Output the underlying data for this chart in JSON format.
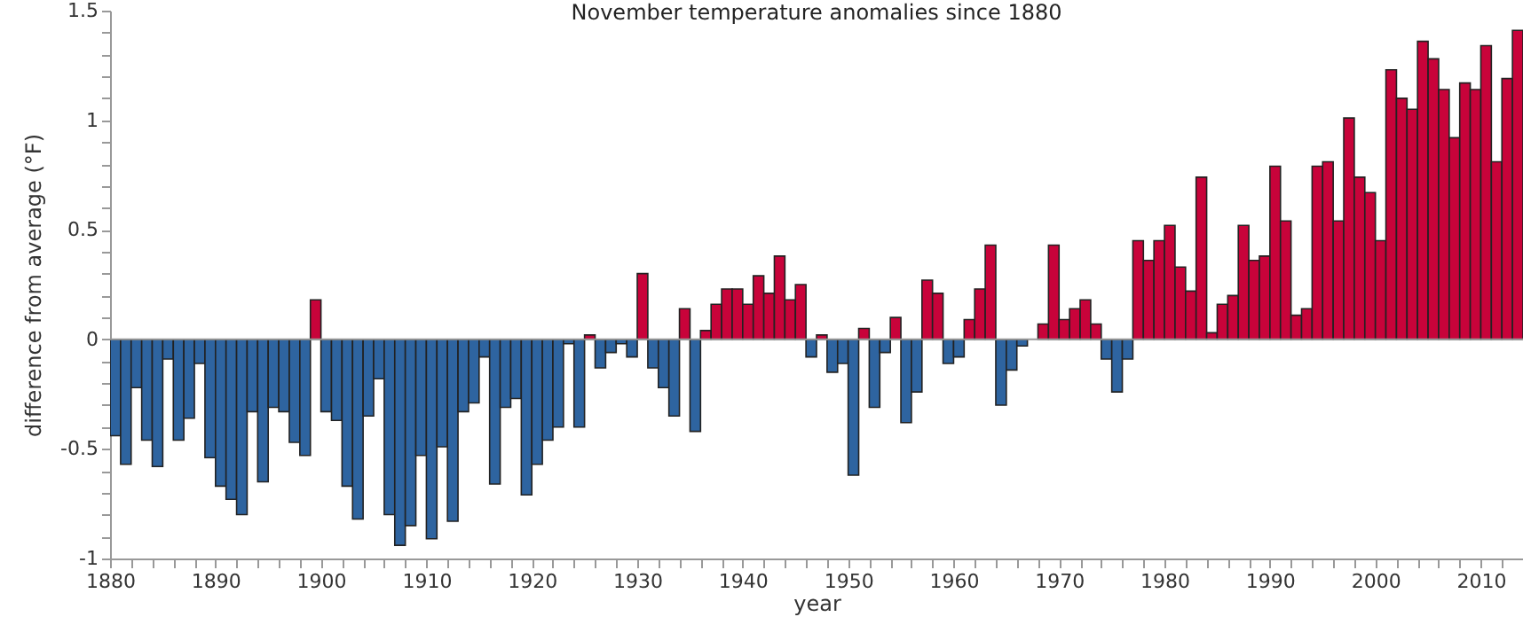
{
  "chart_data": {
    "type": "bar",
    "title": "November temperature anomalies since 1880",
    "xlabel": "year",
    "ylabel": "difference from average (°F)",
    "x": [
      1880,
      1881,
      1882,
      1883,
      1884,
      1885,
      1886,
      1887,
      1888,
      1889,
      1890,
      1891,
      1892,
      1893,
      1894,
      1895,
      1896,
      1897,
      1898,
      1899,
      1900,
      1901,
      1902,
      1903,
      1904,
      1905,
      1906,
      1907,
      1908,
      1909,
      1910,
      1911,
      1912,
      1913,
      1914,
      1915,
      1916,
      1917,
      1918,
      1919,
      1920,
      1921,
      1922,
      1923,
      1924,
      1925,
      1926,
      1927,
      1928,
      1929,
      1930,
      1931,
      1932,
      1933,
      1934,
      1935,
      1936,
      1937,
      1938,
      1939,
      1940,
      1941,
      1942,
      1943,
      1944,
      1945,
      1946,
      1947,
      1948,
      1949,
      1950,
      1951,
      1952,
      1953,
      1954,
      1955,
      1956,
      1957,
      1958,
      1959,
      1960,
      1961,
      1962,
      1963,
      1964,
      1965,
      1966,
      1967,
      1968,
      1969,
      1970,
      1971,
      1972,
      1973,
      1974,
      1975,
      1976,
      1977,
      1978,
      1979,
      1980,
      1981,
      1982,
      1983,
      1984,
      1985,
      1986,
      1987,
      1988,
      1989,
      1990,
      1991,
      1992,
      1993,
      1994,
      1995,
      1996,
      1997,
      1998,
      1999,
      2000,
      2001,
      2002,
      2003,
      2004,
      2005,
      2006,
      2007,
      2008,
      2009,
      2010,
      2011,
      2012,
      2013
    ],
    "values": [
      -0.44,
      -0.57,
      -0.22,
      -0.46,
      -0.58,
      -0.09,
      -0.46,
      -0.36,
      -0.11,
      -0.54,
      -0.67,
      -0.73,
      -0.8,
      -0.33,
      -0.65,
      -0.31,
      -0.33,
      -0.47,
      -0.53,
      0.18,
      -0.33,
      -0.37,
      -0.67,
      -0.82,
      -0.35,
      -0.18,
      -0.8,
      -0.94,
      -0.85,
      -0.53,
      -0.91,
      -0.49,
      -0.83,
      -0.33,
      -0.29,
      -0.08,
      -0.66,
      -0.31,
      -0.27,
      -0.71,
      -0.57,
      -0.46,
      -0.4,
      -0.02,
      -0.4,
      0.02,
      -0.13,
      -0.06,
      -0.02,
      -0.08,
      0.3,
      -0.13,
      -0.22,
      -0.35,
      0.14,
      -0.42,
      0.04,
      0.16,
      0.23,
      0.23,
      0.16,
      0.29,
      0.21,
      0.38,
      0.18,
      0.25,
      -0.08,
      0.02,
      -0.15,
      -0.11,
      -0.62,
      0.05,
      -0.31,
      -0.06,
      0.1,
      -0.38,
      -0.24,
      0.27,
      0.21,
      -0.11,
      -0.08,
      0.09,
      0.23,
      0.43,
      -0.3,
      -0.14,
      -0.03,
      null,
      0.07,
      0.43,
      0.09,
      0.14,
      0.18,
      0.07,
      -0.09,
      -0.24,
      -0.09,
      0.45,
      0.36,
      0.45,
      0.52,
      0.33,
      0.22,
      0.74,
      0.03,
      0.16,
      0.2,
      0.52,
      0.36,
      0.38,
      0.79,
      0.54,
      0.11,
      0.14,
      0.79,
      0.81,
      0.54,
      1.01,
      0.74,
      0.67,
      0.45,
      1.23,
      1.1,
      1.05,
      1.36,
      1.28,
      1.14,
      0.92,
      1.17,
      1.14,
      1.34,
      0.81,
      1.19,
      1.41
    ],
    "colors": [
      "#2e64a0",
      "#2e64a0",
      "#2e64a0",
      "#2e64a0",
      "#2e64a0",
      "#2e64a0",
      "#2e64a0",
      "#2e64a0",
      "#2e64a0",
      "#2e64a0",
      "#2e64a0",
      "#2e64a0",
      "#2e64a0",
      "#2e64a0",
      "#2e64a0",
      "#2e64a0",
      "#2e64a0",
      "#2e64a0",
      "#2e64a0",
      "#c8033a",
      "#2e64a0",
      "#2e64a0",
      "#2e64a0",
      "#2e64a0",
      "#2e64a0",
      "#2e64a0",
      "#2e64a0",
      "#2e64a0",
      "#2e64a0",
      "#2e64a0",
      "#2e64a0",
      "#2e64a0",
      "#2e64a0",
      "#2e64a0",
      "#2e64a0",
      "#2e64a0",
      "#2e64a0",
      "#2e64a0",
      "#2e64a0",
      "#2e64a0",
      "#2e64a0",
      "#2e64a0",
      "#2e64a0",
      "#2e64a0",
      "#2e64a0",
      "#c8033a",
      "#2e64a0",
      "#2e64a0",
      "#2e64a0",
      "#2e64a0",
      "#c8033a",
      "#2e64a0",
      "#2e64a0",
      "#2e64a0",
      "#c8033a",
      "#2e64a0",
      "#c8033a",
      "#c8033a",
      "#c8033a",
      "#c8033a",
      "#c8033a",
      "#c8033a",
      "#c8033a",
      "#c8033a",
      "#c8033a",
      "#c8033a",
      "#2e64a0",
      "#c8033a",
      "#2e64a0",
      "#2e64a0",
      "#2e64a0",
      "#c8033a",
      "#2e64a0",
      "#2e64a0",
      "#c8033a",
      "#2e64a0",
      "#2e64a0",
      "#c8033a",
      "#c8033a",
      "#2e64a0",
      "#2e64a0",
      "#c8033a",
      "#c8033a",
      "#c8033a",
      "#2e64a0",
      "#2e64a0",
      "#2e64a0",
      "#c8033a",
      "#c8033a",
      "#c8033a",
      "#c8033a",
      "#c8033a",
      "#c8033a",
      "#c8033a",
      "#2e64a0",
      "#2e64a0",
      "#2e64a0",
      "#c8033a",
      "#c8033a",
      "#c8033a",
      "#c8033a",
      "#c8033a",
      "#c8033a",
      "#c8033a",
      "#c8033a",
      "#c8033a",
      "#c8033a",
      "#c8033a",
      "#c8033a",
      "#c8033a",
      "#c8033a",
      "#c8033a",
      "#c8033a",
      "#c8033a",
      "#c8033a",
      "#c8033a",
      "#c8033a",
      "#c8033a",
      "#c8033a",
      "#c8033a",
      "#c8033a",
      "#c8033a",
      "#c8033a",
      "#c8033a",
      "#c8033a",
      "#c8033a",
      "#c8033a",
      "#c8033a",
      "#c8033a",
      "#c8033a",
      "#c8033a",
      "#c8033a",
      "#c8033a",
      "#c8033a"
    ],
    "xlim": [
      1880,
      2014
    ],
    "xticks": [
      1880,
      {
        "value": 1882,
        "label": null
      },
      {
        "value": 1884,
        "label": null
      },
      {
        "value": 1886,
        "label": null
      },
      {
        "value": 1888,
        "label": null
      },
      1890,
      {
        "value": 1892,
        "label": null
      },
      {
        "value": 1894,
        "label": null
      },
      {
        "value": 1896,
        "label": null
      },
      {
        "value": 1898,
        "label": null
      },
      1900,
      {
        "value": 1902,
        "label": null
      },
      {
        "value": 1904,
        "label": null
      },
      {
        "value": 1906,
        "label": null
      },
      {
        "value": 1908,
        "label": null
      },
      1910,
      {
        "value": 1912,
        "label": null
      },
      {
        "value": 1914,
        "label": null
      },
      {
        "value": 1916,
        "label": null
      },
      {
        "value": 1918,
        "label": null
      },
      1920,
      {
        "value": 1922,
        "label": null
      },
      {
        "value": 1924,
        "label": null
      },
      {
        "value": 1926,
        "label": null
      },
      {
        "value": 1928,
        "label": null
      },
      1930,
      {
        "value": 1932,
        "label": null
      },
      {
        "value": 1934,
        "label": null
      },
      {
        "value": 1936,
        "label": null
      },
      {
        "value": 1938,
        "label": null
      },
      1940,
      {
        "value": 1942,
        "label": null
      },
      {
        "value": 1944,
        "label": null
      },
      {
        "value": 1946,
        "label": null
      },
      {
        "value": 1948,
        "label": null
      },
      1950,
      {
        "value": 1952,
        "label": null
      },
      {
        "value": 1954,
        "label": null
      },
      {
        "value": 1956,
        "label": null
      },
      {
        "value": 1958,
        "label": null
      },
      1960,
      {
        "value": 1962,
        "label": null
      },
      {
        "value": 1964,
        "label": null
      },
      {
        "value": 1966,
        "label": null
      },
      {
        "value": 1968,
        "label": null
      },
      1970,
      {
        "value": 1972,
        "label": null
      },
      {
        "value": 1974,
        "label": null
      },
      {
        "value": 1976,
        "label": null
      },
      {
        "value": 1978,
        "label": null
      },
      1980,
      {
        "value": 1982,
        "label": null
      },
      {
        "value": 1984,
        "label": null
      },
      {
        "value": 1986,
        "label": null
      },
      {
        "value": 1988,
        "label": null
      },
      1990,
      {
        "value": 1992,
        "label": null
      },
      {
        "value": 1994,
        "label": null
      },
      {
        "value": 1996,
        "label": null
      },
      {
        "value": 1998,
        "label": null
      },
      2000,
      {
        "value": 2002,
        "label": null
      },
      {
        "value": 2004,
        "label": null
      },
      {
        "value": 2006,
        "label": null
      },
      {
        "value": 2008,
        "label": null
      },
      2010,
      {
        "value": 2012,
        "label": null
      }
    ],
    "ylim": [
      -1,
      1.5
    ],
    "yticks": [
      -1,
      {
        "value": -0.9,
        "label": null
      },
      {
        "value": -0.8,
        "label": null
      },
      {
        "value": -0.7,
        "label": null
      },
      {
        "value": -0.6,
        "label": null
      },
      -0.5,
      {
        "value": -0.4,
        "label": null
      },
      {
        "value": -0.3,
        "label": null
      },
      {
        "value": -0.2,
        "label": null
      },
      {
        "value": -0.1,
        "label": null
      },
      0,
      {
        "value": 0.1,
        "label": null
      },
      {
        "value": 0.2,
        "label": null
      },
      {
        "value": 0.3,
        "label": null
      },
      {
        "value": 0.4,
        "label": null
      },
      0.5,
      {
        "value": 0.6,
        "label": null
      },
      {
        "value": 0.7,
        "label": null
      },
      {
        "value": 0.8,
        "label": null
      },
      {
        "value": 0.9,
        "label": null
      },
      1,
      {
        "value": 1.1,
        "label": null
      },
      {
        "value": 1.2,
        "label": null
      },
      {
        "value": 1.3,
        "label": null
      },
      {
        "value": 1.4,
        "label": null
      },
      1.5
    ],
    "ref_lines": [
      {
        "axis": "y",
        "value": 0,
        "color": "#999999"
      }
    ],
    "grid": false
  }
}
